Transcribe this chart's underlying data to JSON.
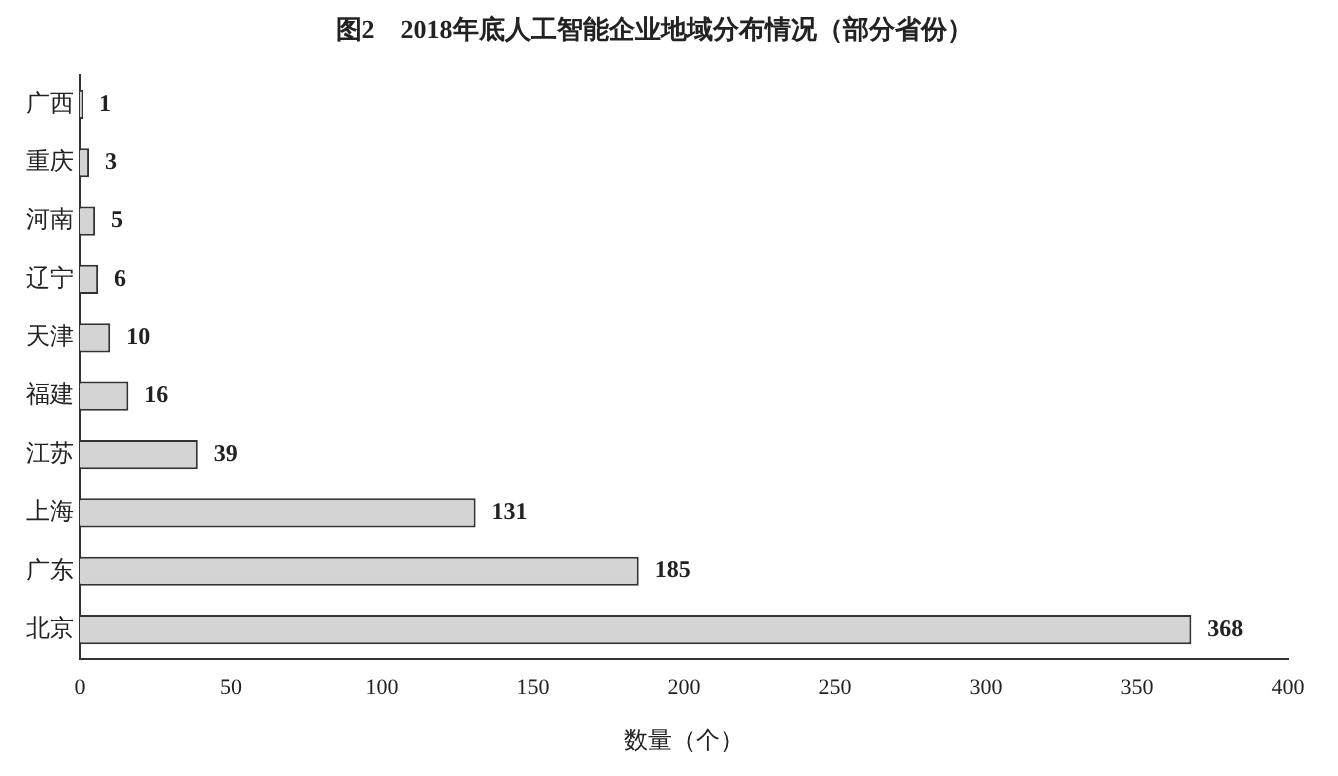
{
  "chart_data": {
    "type": "bar",
    "orientation": "horizontal",
    "title": "图2　2018年底人工智能企业地域分布情况（部分省份）",
    "xlabel": "数量（个）",
    "categories": [
      "广西",
      "重庆",
      "河南",
      "辽宁",
      "天津",
      "福建",
      "江苏",
      "上海",
      "广东",
      "北京"
    ],
    "values": [
      1,
      3,
      5,
      6,
      10,
      16,
      39,
      131,
      185,
      368
    ],
    "color": "#d4d4d4",
    "xlim": [
      0,
      400
    ],
    "xticks": [
      0,
      50,
      100,
      150,
      200,
      250,
      300,
      350,
      400
    ],
    "grid": false,
    "legend": false,
    "data_labels": true
  }
}
